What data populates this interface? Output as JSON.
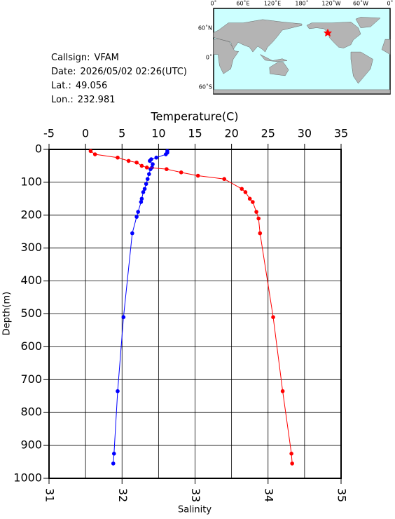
{
  "info": [
    {
      "label": "Callsign:",
      "value": "VFAM"
    },
    {
      "label": "Date:",
      "value": "2026/05/02 02:26(UTC)"
    },
    {
      "label": "Lat.:",
      "value": "49.056"
    },
    {
      "label": "Lon.:",
      "value": "232.981"
    }
  ],
  "map": {
    "lon_labels": [
      "0˚",
      "60˚E",
      "120˚E",
      "180˚",
      "120˚W",
      "60˚W",
      "0˚"
    ],
    "lat_labels": [
      "60˚N",
      "0˚",
      "60˚S"
    ]
  },
  "chart_data": {
    "type": "line",
    "x2_label": "Temperature(C)",
    "x_label": "Salinity",
    "y_label": "Depth(m)",
    "x2lim": [
      -5,
      35
    ],
    "x2ticks": [
      -5,
      0,
      5,
      10,
      15,
      20,
      25,
      30,
      35
    ],
    "xlim": [
      31,
      35
    ],
    "xticks": [
      31,
      32,
      33,
      34,
      35
    ],
    "ylim": [
      1000,
      0
    ],
    "yticks": [
      0,
      100,
      200,
      300,
      400,
      500,
      600,
      700,
      800,
      900,
      1000
    ],
    "grid": true,
    "series": [
      {
        "name": "Temperature",
        "color": "#0000ff",
        "axis": "x2",
        "y": [
          5,
          10,
          15,
          25,
          30,
          35,
          45,
          55,
          60,
          75,
          90,
          105,
          120,
          130,
          150,
          160,
          190,
          205,
          255,
          510,
          735,
          925,
          955
        ],
        "values": [
          11.2,
          11.2,
          11.0,
          9.7,
          9.0,
          8.8,
          9.2,
          9.1,
          8.9,
          8.7,
          8.5,
          8.3,
          8.1,
          7.9,
          7.7,
          7.6,
          7.2,
          7.0,
          6.4,
          5.2,
          4.4,
          3.9,
          3.8
        ]
      },
      {
        "name": "Salinity",
        "color": "#ff0000",
        "axis": "x",
        "y": [
          5,
          15,
          25,
          35,
          40,
          50,
          55,
          60,
          70,
          80,
          90,
          120,
          130,
          150,
          160,
          190,
          210,
          255,
          510,
          735,
          925,
          955
        ],
        "values": [
          31.57,
          31.63,
          31.94,
          32.09,
          32.2,
          32.27,
          32.34,
          32.61,
          32.81,
          33.04,
          33.4,
          33.64,
          33.69,
          33.75,
          33.79,
          33.84,
          33.87,
          33.89,
          34.07,
          34.2,
          34.32,
          34.33
        ]
      }
    ]
  }
}
